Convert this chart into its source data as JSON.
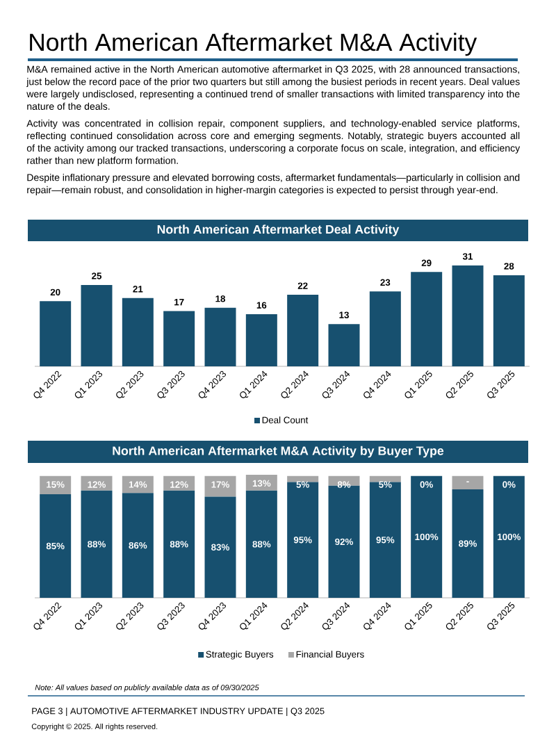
{
  "chart_data": [
    {
      "type": "other",
      "title": "North American Aftermarket M&A Activity",
      "annotations": [
        "M&A remained active in the North American automotive aftermarket in Q3 2025, with 28 announced transactions, just below the record pace of the prior two quarters but still among the busiest periods in recent years. Deal values were largely undisclosed, representing a continued trend of smaller transactions with limited transparency into the nature of the deals.",
        "Activity was concentrated in collision repair, component suppliers, and technology-enabled service platforms, reflecting continued consolidation across core and emerging segments. Notably, strategic buyers accounted all of the activity among our tracked transactions, underscoring a corporate focus on scale, integration, and efficiency rather than new platform formation.",
        "Despite inflationary pressure and elevated borrowing costs, aftermarket fundamentals—particularly in collision and repair—remain robust, and consolidation in higher-margin categories is expected to persist through year-end."
      ]
    },
    {
      "type": "bar",
      "title": "North American Aftermarket Deal Activity",
      "categories": [
        "Q4 2022",
        "Q1 2023",
        "Q2 2023",
        "Q3 2023",
        "Q4 2023",
        "Q1 2024",
        "Q2 2024",
        "Q3 2024",
        "Q4 2024",
        "Q1 2025",
        "Q2 2025",
        "Q3 2025"
      ],
      "series": [
        {
          "name": "Deal Count",
          "color": "#17506f",
          "values": [
            20,
            25,
            21,
            17,
            18,
            16,
            22,
            13,
            23,
            29,
            31,
            28
          ]
        }
      ],
      "tick_labels": "x",
      "data_labels": true,
      "legend": "bottom"
    },
    {
      "type": "bar",
      "title": "North American Aftermarket M&A Activity by Buyer Type",
      "categories": [
        "Q4 2022",
        "Q1 2023",
        "Q2 2023",
        "Q3 2023",
        "Q4 2023",
        "Q1 2024",
        "Q2 2024",
        "Q3 2024",
        "Q4 2024",
        "Q1 2025",
        "Q2 2025",
        "Q3 2025"
      ],
      "stacked": true,
      "series": [
        {
          "name": "Strategic Buyers",
          "color": "#17506f",
          "values": [
            85,
            88,
            86,
            88,
            83,
            88,
            95,
            92,
            95,
            100,
            89,
            100
          ],
          "value_labels": [
            "85%",
            "88%",
            "86%",
            "88%",
            "83%",
            "88%",
            "95%",
            "92%",
            "95%",
            "100%",
            "89%",
            "100%"
          ]
        },
        {
          "name": "Financial Buyers",
          "color": "#a6a6a6",
          "values": [
            15,
            12,
            14,
            12,
            17,
            13,
            5,
            8,
            5,
            0,
            11,
            0
          ],
          "value_labels": [
            "15%",
            "12%",
            "14%",
            "12%",
            "17%",
            "13%",
            "5%",
            "8%",
            "5%",
            "0%",
            "-",
            "0%"
          ]
        }
      ],
      "tick_labels": "x",
      "legend": "bottom",
      "annotations": [
        "Note: All values based on publicly available data as of 09/30/2025"
      ]
    },
    {
      "type": "other",
      "annotations": [
        "PAGE 3 | AUTOMOTIVE AFTERMARKET INDUSTRY UPDATE | Q3 2025",
        "Copyright © 2025. All rights reserved."
      ]
    }
  ]
}
